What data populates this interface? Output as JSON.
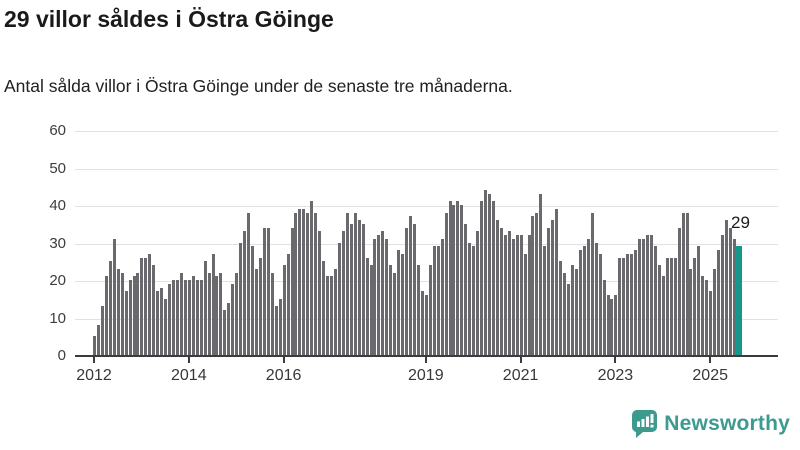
{
  "header": {
    "title": "29 villor såldes i Östra Göinge",
    "subtitle": "Antal sålda villor i Östra Göinge under de senaste tre månaderna."
  },
  "footer": {
    "brand": "Newsworthy",
    "brand_color": "#3c9a8f",
    "logo_icon": "newsworthy-bubble-chart-icon"
  },
  "chart_data": {
    "type": "bar",
    "title": "29 villor såldes i Östra Göinge",
    "subtitle": "Antal sålda villor i Östra Göinge under de senaste tre månaderna.",
    "xlabel": "",
    "ylabel": "",
    "ylim": [
      0,
      60
    ],
    "yticks": [
      0,
      10,
      20,
      30,
      40,
      50,
      60
    ],
    "xtick_years": [
      2012,
      2014,
      2016,
      2019,
      2021,
      2023,
      2025
    ],
    "grid": true,
    "bar_color": "#69696e",
    "x_start": "2012-01",
    "x_end": "2025-08",
    "series_by_year": [
      {
        "year": 2012,
        "monthly": [
          5,
          8,
          13,
          21,
          25,
          31,
          23,
          22,
          17,
          20,
          21,
          22
        ]
      },
      {
        "year": 2013,
        "monthly": [
          26,
          26,
          27,
          24,
          17,
          18,
          15,
          19,
          20,
          20,
          22,
          20
        ]
      },
      {
        "year": 2014,
        "monthly": [
          20,
          21,
          20,
          20,
          25,
          22,
          27,
          21,
          22,
          12,
          14,
          19
        ]
      },
      {
        "year": 2015,
        "monthly": [
          22,
          30,
          33,
          38,
          29,
          23,
          26,
          34,
          34,
          22,
          13,
          15
        ]
      },
      {
        "year": 2016,
        "monthly": [
          24,
          27,
          34,
          38,
          39,
          39,
          38,
          41,
          38,
          33,
          25,
          21
        ]
      },
      {
        "year": 2017,
        "monthly": [
          21,
          23,
          30,
          33,
          38,
          35,
          38,
          36,
          35,
          26,
          24,
          31
        ]
      },
      {
        "year": 2018,
        "monthly": [
          32,
          33,
          31,
          24,
          22,
          28,
          27,
          34,
          37,
          35,
          24,
          17
        ]
      },
      {
        "year": 2019,
        "monthly": [
          16,
          24,
          29,
          29,
          31,
          38,
          41,
          40,
          41,
          40,
          35,
          30
        ]
      },
      {
        "year": 2020,
        "monthly": [
          29,
          33,
          41,
          44,
          43,
          41,
          36,
          34,
          32,
          33,
          31,
          32
        ]
      },
      {
        "year": 2021,
        "monthly": [
          32,
          27,
          32,
          37,
          38,
          43,
          29,
          34,
          36,
          39,
          25,
          22
        ]
      },
      {
        "year": 2022,
        "monthly": [
          19,
          24,
          23,
          28,
          29,
          31,
          38,
          30,
          27,
          20,
          16,
          15
        ]
      },
      {
        "year": 2023,
        "monthly": [
          16,
          26,
          26,
          27,
          27,
          28,
          31,
          31,
          32,
          32,
          29,
          24
        ]
      },
      {
        "year": 2024,
        "monthly": [
          21,
          26,
          26,
          26,
          34,
          38,
          38,
          23,
          26,
          29,
          21,
          20
        ]
      },
      {
        "year": 2025,
        "monthly": [
          17,
          23,
          28,
          32,
          36,
          34,
          31,
          29
        ]
      }
    ],
    "highlight": {
      "index_from_end": 0,
      "value": 29,
      "color": "#149889"
    },
    "annotation": {
      "text": "29"
    }
  }
}
